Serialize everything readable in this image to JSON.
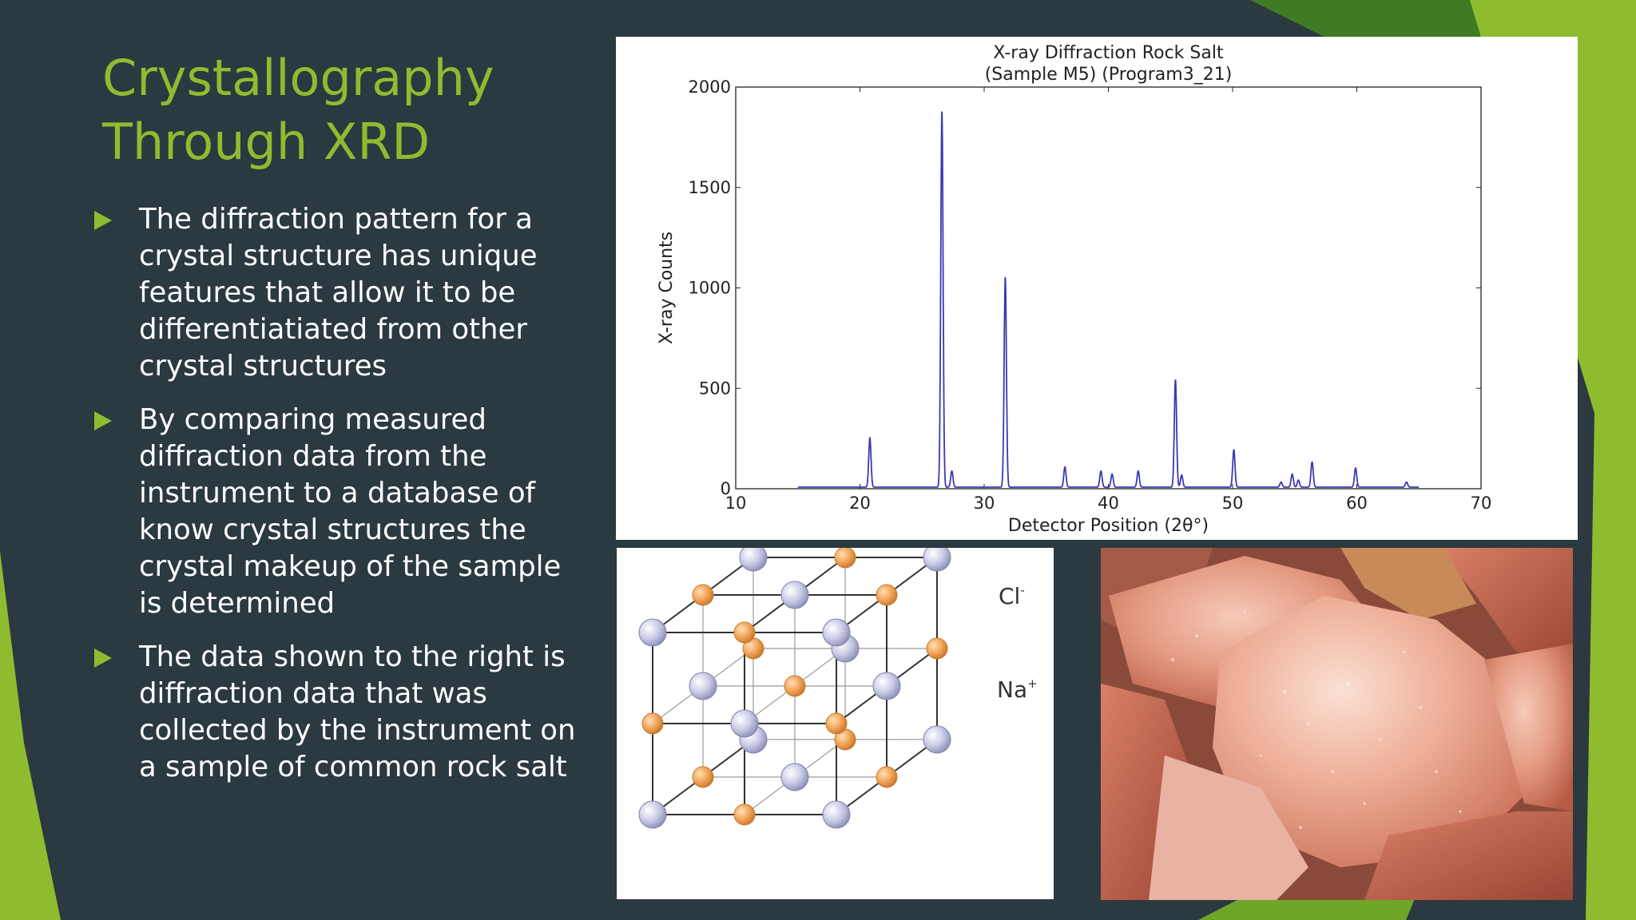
{
  "slide": {
    "title_lines": [
      "Crystallography",
      "Through XRD"
    ],
    "bullets": [
      "The diffraction pattern for a crystal structure has unique features that allow it to be differentiatiated from other crystal structures",
      "By comparing measured diffraction data from the instrument to a database of know crystal structures the crystal makeup of the sample is determined",
      "The data shown to the right is diffraction data that was collected by the instrument on a sample of common rock salt"
    ]
  },
  "colors": {
    "background": "#2b3940",
    "accent_green": "#8fbc2f",
    "text": "#ffffff",
    "trace": "#3a3ab0",
    "chlorine": "#c9cbe6",
    "sodium": "#f2a55a"
  },
  "chart_data": {
    "type": "line",
    "title_lines": [
      "X-ray Diffraction Rock Salt",
      "(Sample M5) (Program3_21)"
    ],
    "xlabel": "Detector Position (2θ°)",
    "ylabel": "X-ray Counts",
    "xlim": [
      10,
      70
    ],
    "ylim": [
      0,
      2000
    ],
    "xticks": [
      "10",
      "20",
      "30",
      "40",
      "50",
      "60",
      "70"
    ],
    "yticks": [
      "0",
      "500",
      "1000",
      "1500",
      "2000"
    ],
    "grid": false,
    "x_range": [
      15,
      65
    ],
    "baseline": 8,
    "peaks": [
      {
        "x": 20.8,
        "y": 245
      },
      {
        "x": 26.6,
        "y": 1870
      },
      {
        "x": 27.4,
        "y": 80
      },
      {
        "x": 31.7,
        "y": 1045
      },
      {
        "x": 36.5,
        "y": 100
      },
      {
        "x": 39.4,
        "y": 80
      },
      {
        "x": 40.3,
        "y": 65
      },
      {
        "x": 42.4,
        "y": 80
      },
      {
        "x": 45.4,
        "y": 535
      },
      {
        "x": 45.9,
        "y": 60
      },
      {
        "x": 50.1,
        "y": 185
      },
      {
        "x": 53.9,
        "y": 25
      },
      {
        "x": 54.8,
        "y": 65
      },
      {
        "x": 55.3,
        "y": 35
      },
      {
        "x": 56.4,
        "y": 125
      },
      {
        "x": 59.9,
        "y": 95
      },
      {
        "x": 64.0,
        "y": 25
      }
    ]
  },
  "lattice": {
    "labels": [
      "Cl",
      "Na"
    ],
    "charges": [
      "-",
      "+"
    ]
  }
}
